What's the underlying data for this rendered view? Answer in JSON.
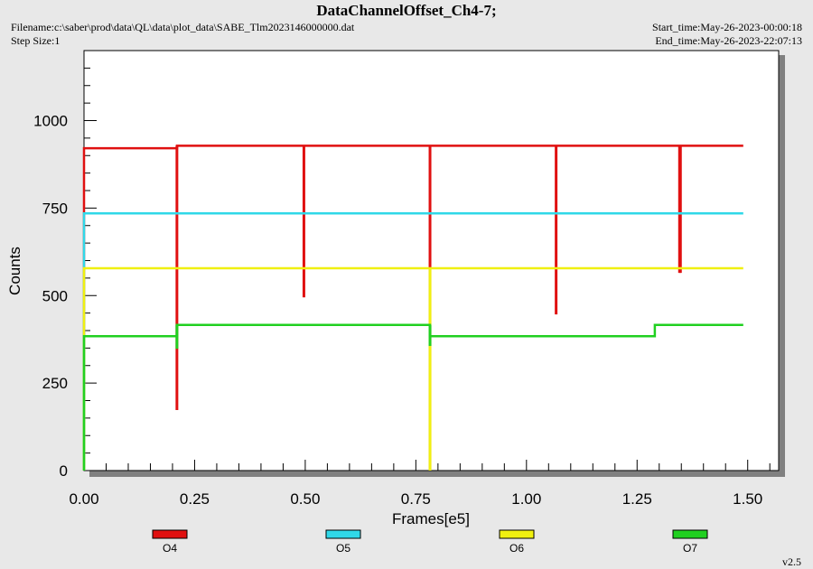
{
  "header": {
    "title": "DataChannelOffset_Ch4-7;",
    "filename": "Filename:c:\\saber\\prod\\data\\QL\\data\\plot_data\\SABE_Tlm2023146000000.dat",
    "step_size": "Step Size:1",
    "start_time": "Start_time:May-26-2023-00:00:18",
    "end_time": "End_time:May-26-2023-22:07:13"
  },
  "footer": {
    "version": "v2.5"
  },
  "colors": {
    "background": "#e8e8e8",
    "plot_background": "#ffffff",
    "O4": "#e01010",
    "O5": "#30d8e8",
    "O6": "#f0f010",
    "O7": "#20d020"
  },
  "chart_data": {
    "type": "line",
    "title": "DataChannelOffset_Ch4-7;",
    "xlabel": "Frames[e5]",
    "ylabel": "Counts",
    "xlim": [
      0,
      1.57
    ],
    "ylim": [
      0,
      1200
    ],
    "x_ticks": [
      0.0,
      0.25,
      0.5,
      0.75,
      1.0,
      1.25,
      1.5
    ],
    "x_tick_labels": [
      "0.00",
      "0.25",
      "0.50",
      "0.75",
      "1.00",
      "1.25",
      "1.50"
    ],
    "y_ticks": [
      0,
      250,
      500,
      750,
      1000
    ],
    "y_tick_labels": [
      "0",
      "250",
      "500",
      "750",
      "1000"
    ],
    "grid": false,
    "legend_position": "bottom",
    "series": [
      {
        "name": "O4",
        "color": "#e01010",
        "points": [
          [
            0.0,
            0
          ],
          [
            0.0,
            921
          ],
          [
            0.21,
            921
          ],
          [
            0.21,
            928
          ],
          [
            1.49,
            928
          ]
        ],
        "spikes": [
          [
            0.21,
            173
          ],
          [
            0.497,
            495
          ],
          [
            0.782,
            0
          ],
          [
            1.067,
            446
          ],
          [
            1.346,
            565
          ],
          [
            1.348,
            565
          ]
        ]
      },
      {
        "name": "O5",
        "color": "#30d8e8",
        "points": [
          [
            0.0,
            0
          ],
          [
            0.0,
            735
          ],
          [
            1.49,
            735
          ]
        ],
        "spikes": []
      },
      {
        "name": "O6",
        "color": "#f0f010",
        "points": [
          [
            0.0,
            0
          ],
          [
            0.0,
            578
          ],
          [
            1.49,
            578
          ]
        ],
        "spikes": [
          [
            0.782,
            0
          ]
        ]
      },
      {
        "name": "O7",
        "color": "#20d020",
        "points": [
          [
            0.0,
            0
          ],
          [
            0.0,
            384
          ],
          [
            0.21,
            384
          ],
          [
            0.21,
            416
          ],
          [
            0.782,
            416
          ],
          [
            0.782,
            384
          ],
          [
            1.29,
            384
          ],
          [
            1.29,
            416
          ],
          [
            1.49,
            416
          ]
        ],
        "spikes": [
          [
            0.21,
            348
          ],
          [
            0.782,
            356
          ]
        ]
      }
    ]
  }
}
